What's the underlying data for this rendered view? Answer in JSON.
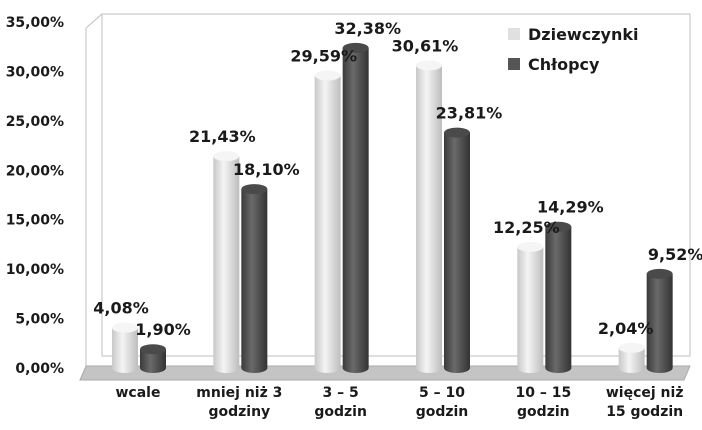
{
  "chart_data": {
    "type": "bar",
    "categories": [
      [
        "wcale"
      ],
      [
        "mniej niż 3",
        "godziny"
      ],
      [
        "3 – 5",
        "godzin"
      ],
      [
        "5 – 10",
        "godzin"
      ],
      [
        "10 – 15",
        "godzin"
      ],
      [
        "więcej niż",
        "15 godzin"
      ]
    ],
    "series": [
      {
        "name": "Dziewczynki",
        "values": [
          4.08,
          21.43,
          29.59,
          30.61,
          12.25,
          2.04
        ],
        "labels": [
          "4,08%",
          "21,43%",
          "29,59%",
          "30,61%",
          "12,25%",
          "2,04%"
        ],
        "color": "#e6e6e6"
      },
      {
        "name": "Chłopcy",
        "values": [
          1.9,
          18.1,
          32.38,
          23.81,
          14.29,
          9.52
        ],
        "labels": [
          "1,90%",
          "18,10%",
          "32,38%",
          "23,81%",
          "14,29%",
          "9,52%"
        ],
        "color": "#555555"
      }
    ],
    "y_ticks": [
      "0,00%",
      "5,00%",
      "10,00%",
      "15,00%",
      "20,00%",
      "25,00%",
      "30,00%",
      "35,00%"
    ],
    "ylim": [
      0,
      35
    ],
    "grid": false,
    "legend": "top-right",
    "title": "",
    "xlabel": "",
    "ylabel": ""
  }
}
